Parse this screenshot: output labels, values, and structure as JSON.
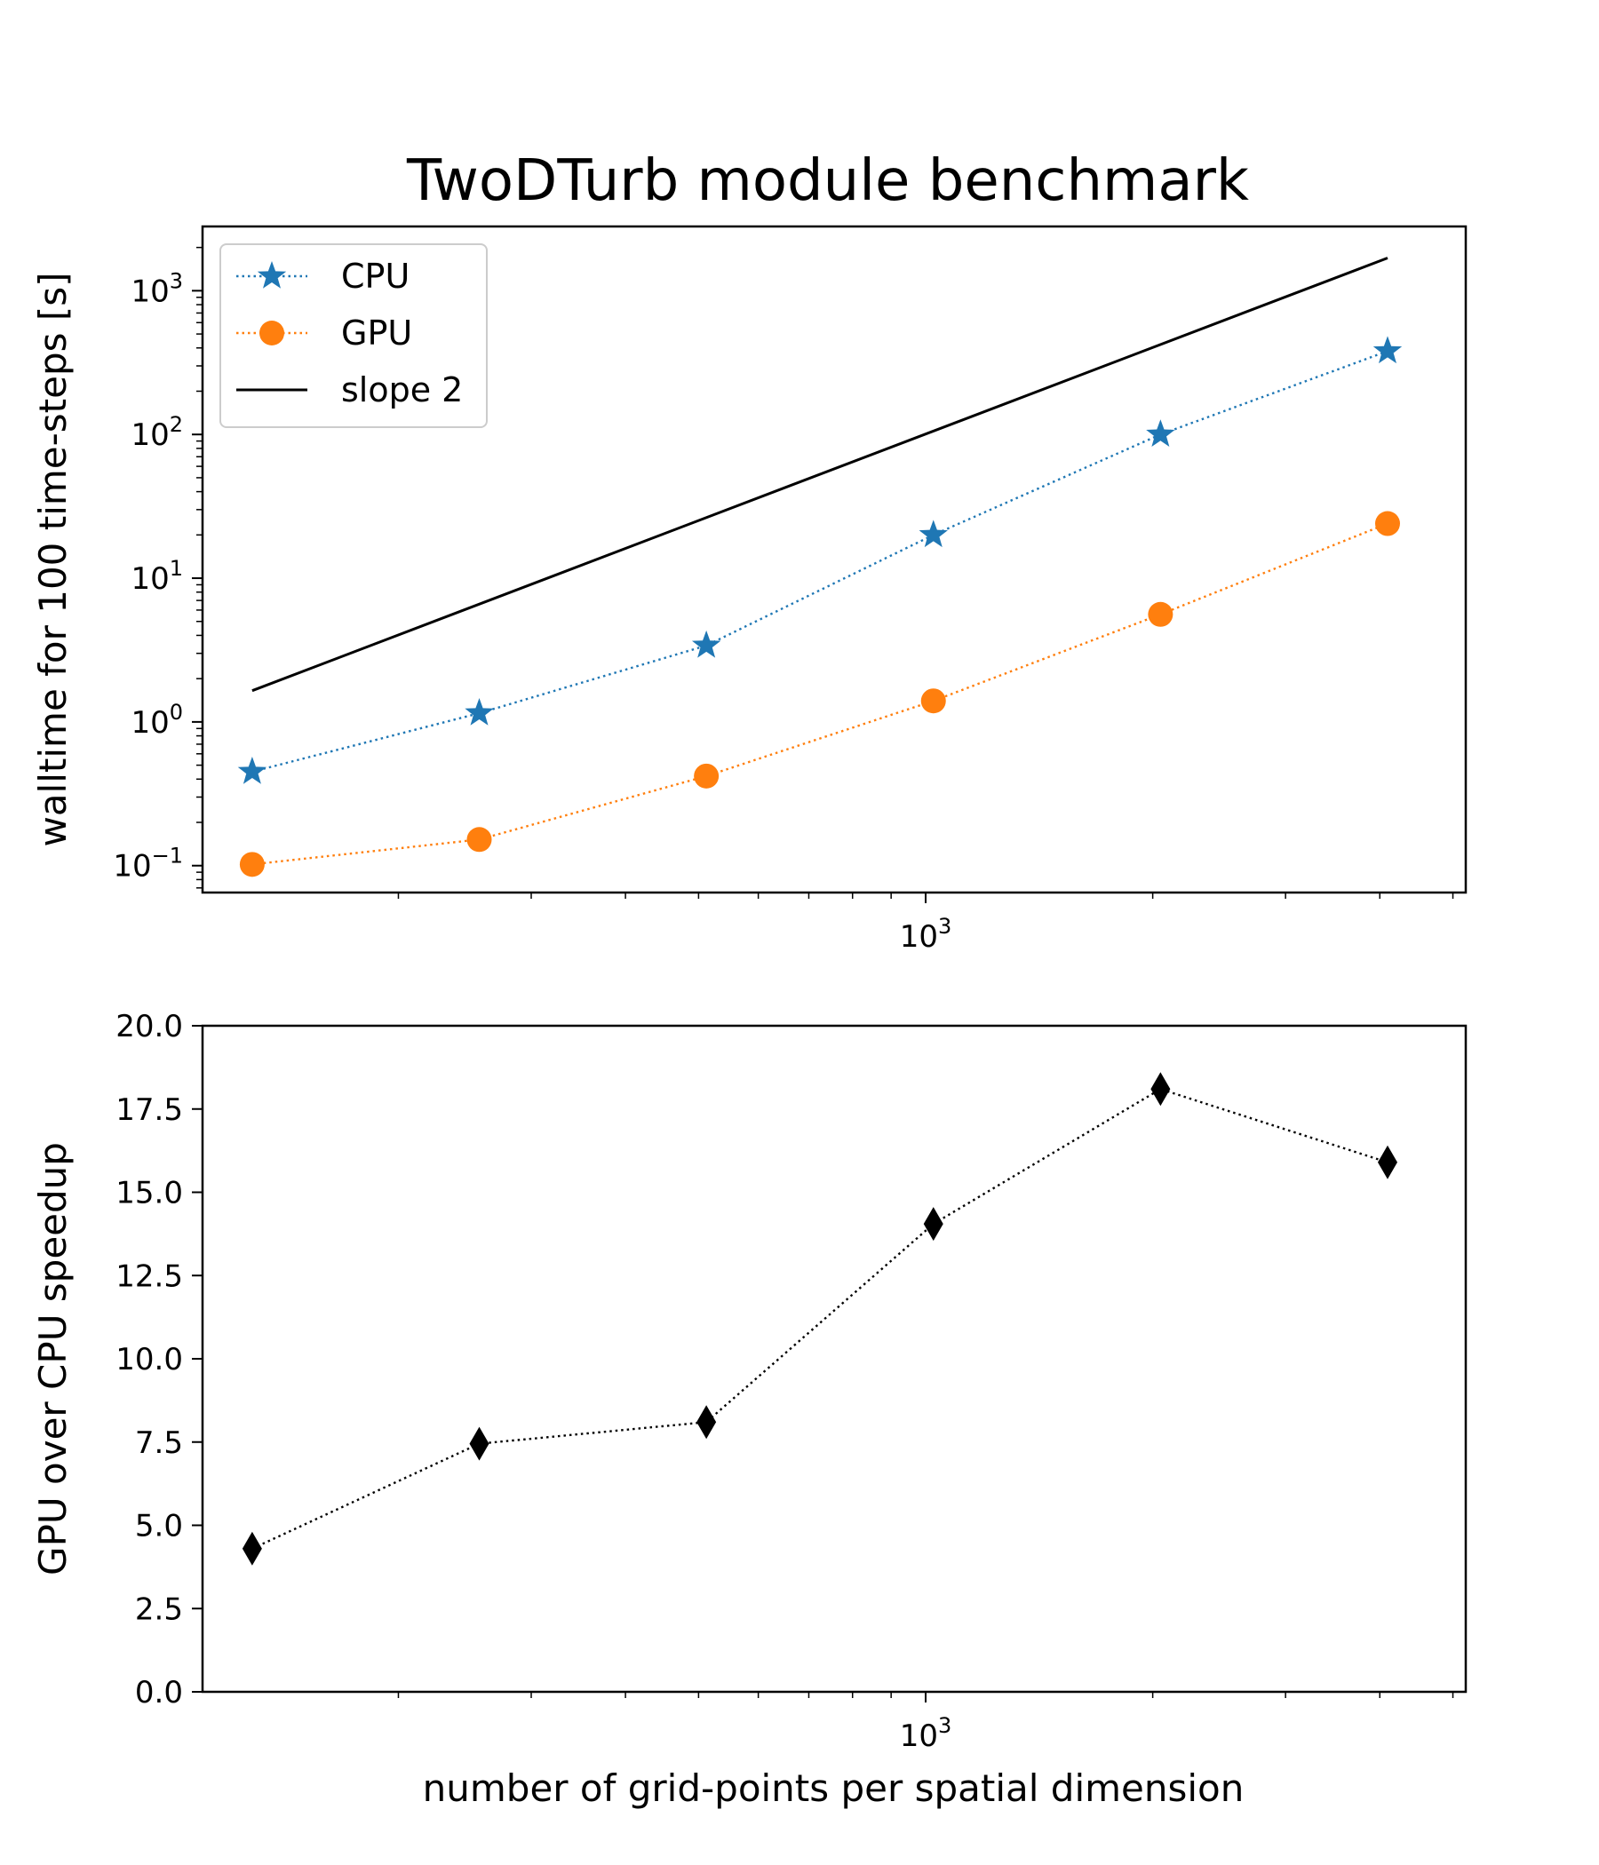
{
  "figure_title": "TwoDTurb module benchmark",
  "chart_data": [
    {
      "type": "line",
      "title": "TwoDTurb module benchmark",
      "xlabel": "",
      "ylabel": "walltime for 100 time-steps [s]",
      "xscale": "log",
      "yscale": "log",
      "xlim": [
        110,
        5200
      ],
      "ylim": [
        0.065,
        2800
      ],
      "x_ticks": [
        {
          "value": 1000,
          "base": "10",
          "exp": "3"
        }
      ],
      "y_ticks": [
        {
          "value": 0.1,
          "base": "10",
          "exp": "−1"
        },
        {
          "value": 1,
          "base": "10",
          "exp": "0"
        },
        {
          "value": 10,
          "base": "10",
          "exp": "1"
        },
        {
          "value": 100,
          "base": "10",
          "exp": "2"
        },
        {
          "value": 1000,
          "base": "10",
          "exp": "3"
        }
      ],
      "grid": false,
      "legend": "top-left",
      "series": [
        {
          "name": "CPU",
          "x": [
            128,
            256,
            512,
            1024,
            2048,
            4096
          ],
          "values": [
            0.45,
            1.15,
            3.4,
            20,
            100,
            380
          ],
          "color": "#1f77b4",
          "marker": "star",
          "linestyle": "dotted"
        },
        {
          "name": "GPU",
          "x": [
            128,
            256,
            512,
            1024,
            2048,
            4096
          ],
          "values": [
            0.102,
            0.152,
            0.42,
            1.4,
            5.6,
            24
          ],
          "color": "#ff7f0e",
          "marker": "circle",
          "linestyle": "dotted"
        },
        {
          "name": "slope 2",
          "x": [
            128,
            4096
          ],
          "values": [
            1.65,
            1690
          ],
          "color": "#000000",
          "marker": "none",
          "linestyle": "solid"
        }
      ]
    },
    {
      "type": "line",
      "title": "",
      "xlabel": "number of grid-points per spatial dimension",
      "ylabel": "GPU over CPU speedup",
      "xscale": "log",
      "yscale": "linear",
      "xlim": [
        110,
        5200
      ],
      "ylim": [
        0,
        20
      ],
      "x_ticks": [
        {
          "value": 1000,
          "base": "10",
          "exp": "3"
        }
      ],
      "y_ticks": [
        {
          "value": 0,
          "label": "0.0"
        },
        {
          "value": 2.5,
          "label": "2.5"
        },
        {
          "value": 5,
          "label": "5.0"
        },
        {
          "value": 7.5,
          "label": "7.5"
        },
        {
          "value": 10,
          "label": "10.0"
        },
        {
          "value": 12.5,
          "label": "12.5"
        },
        {
          "value": 15,
          "label": "15.0"
        },
        {
          "value": 17.5,
          "label": "17.5"
        },
        {
          "value": 20,
          "label": "20.0"
        }
      ],
      "grid": false,
      "series": [
        {
          "x": [
            128,
            256,
            512,
            1024,
            2048,
            4096
          ],
          "values": [
            4.3,
            7.45,
            8.1,
            14.05,
            18.1,
            15.9
          ],
          "color": "#000000",
          "marker": "diamond",
          "linestyle": "dotted"
        }
      ]
    }
  ]
}
